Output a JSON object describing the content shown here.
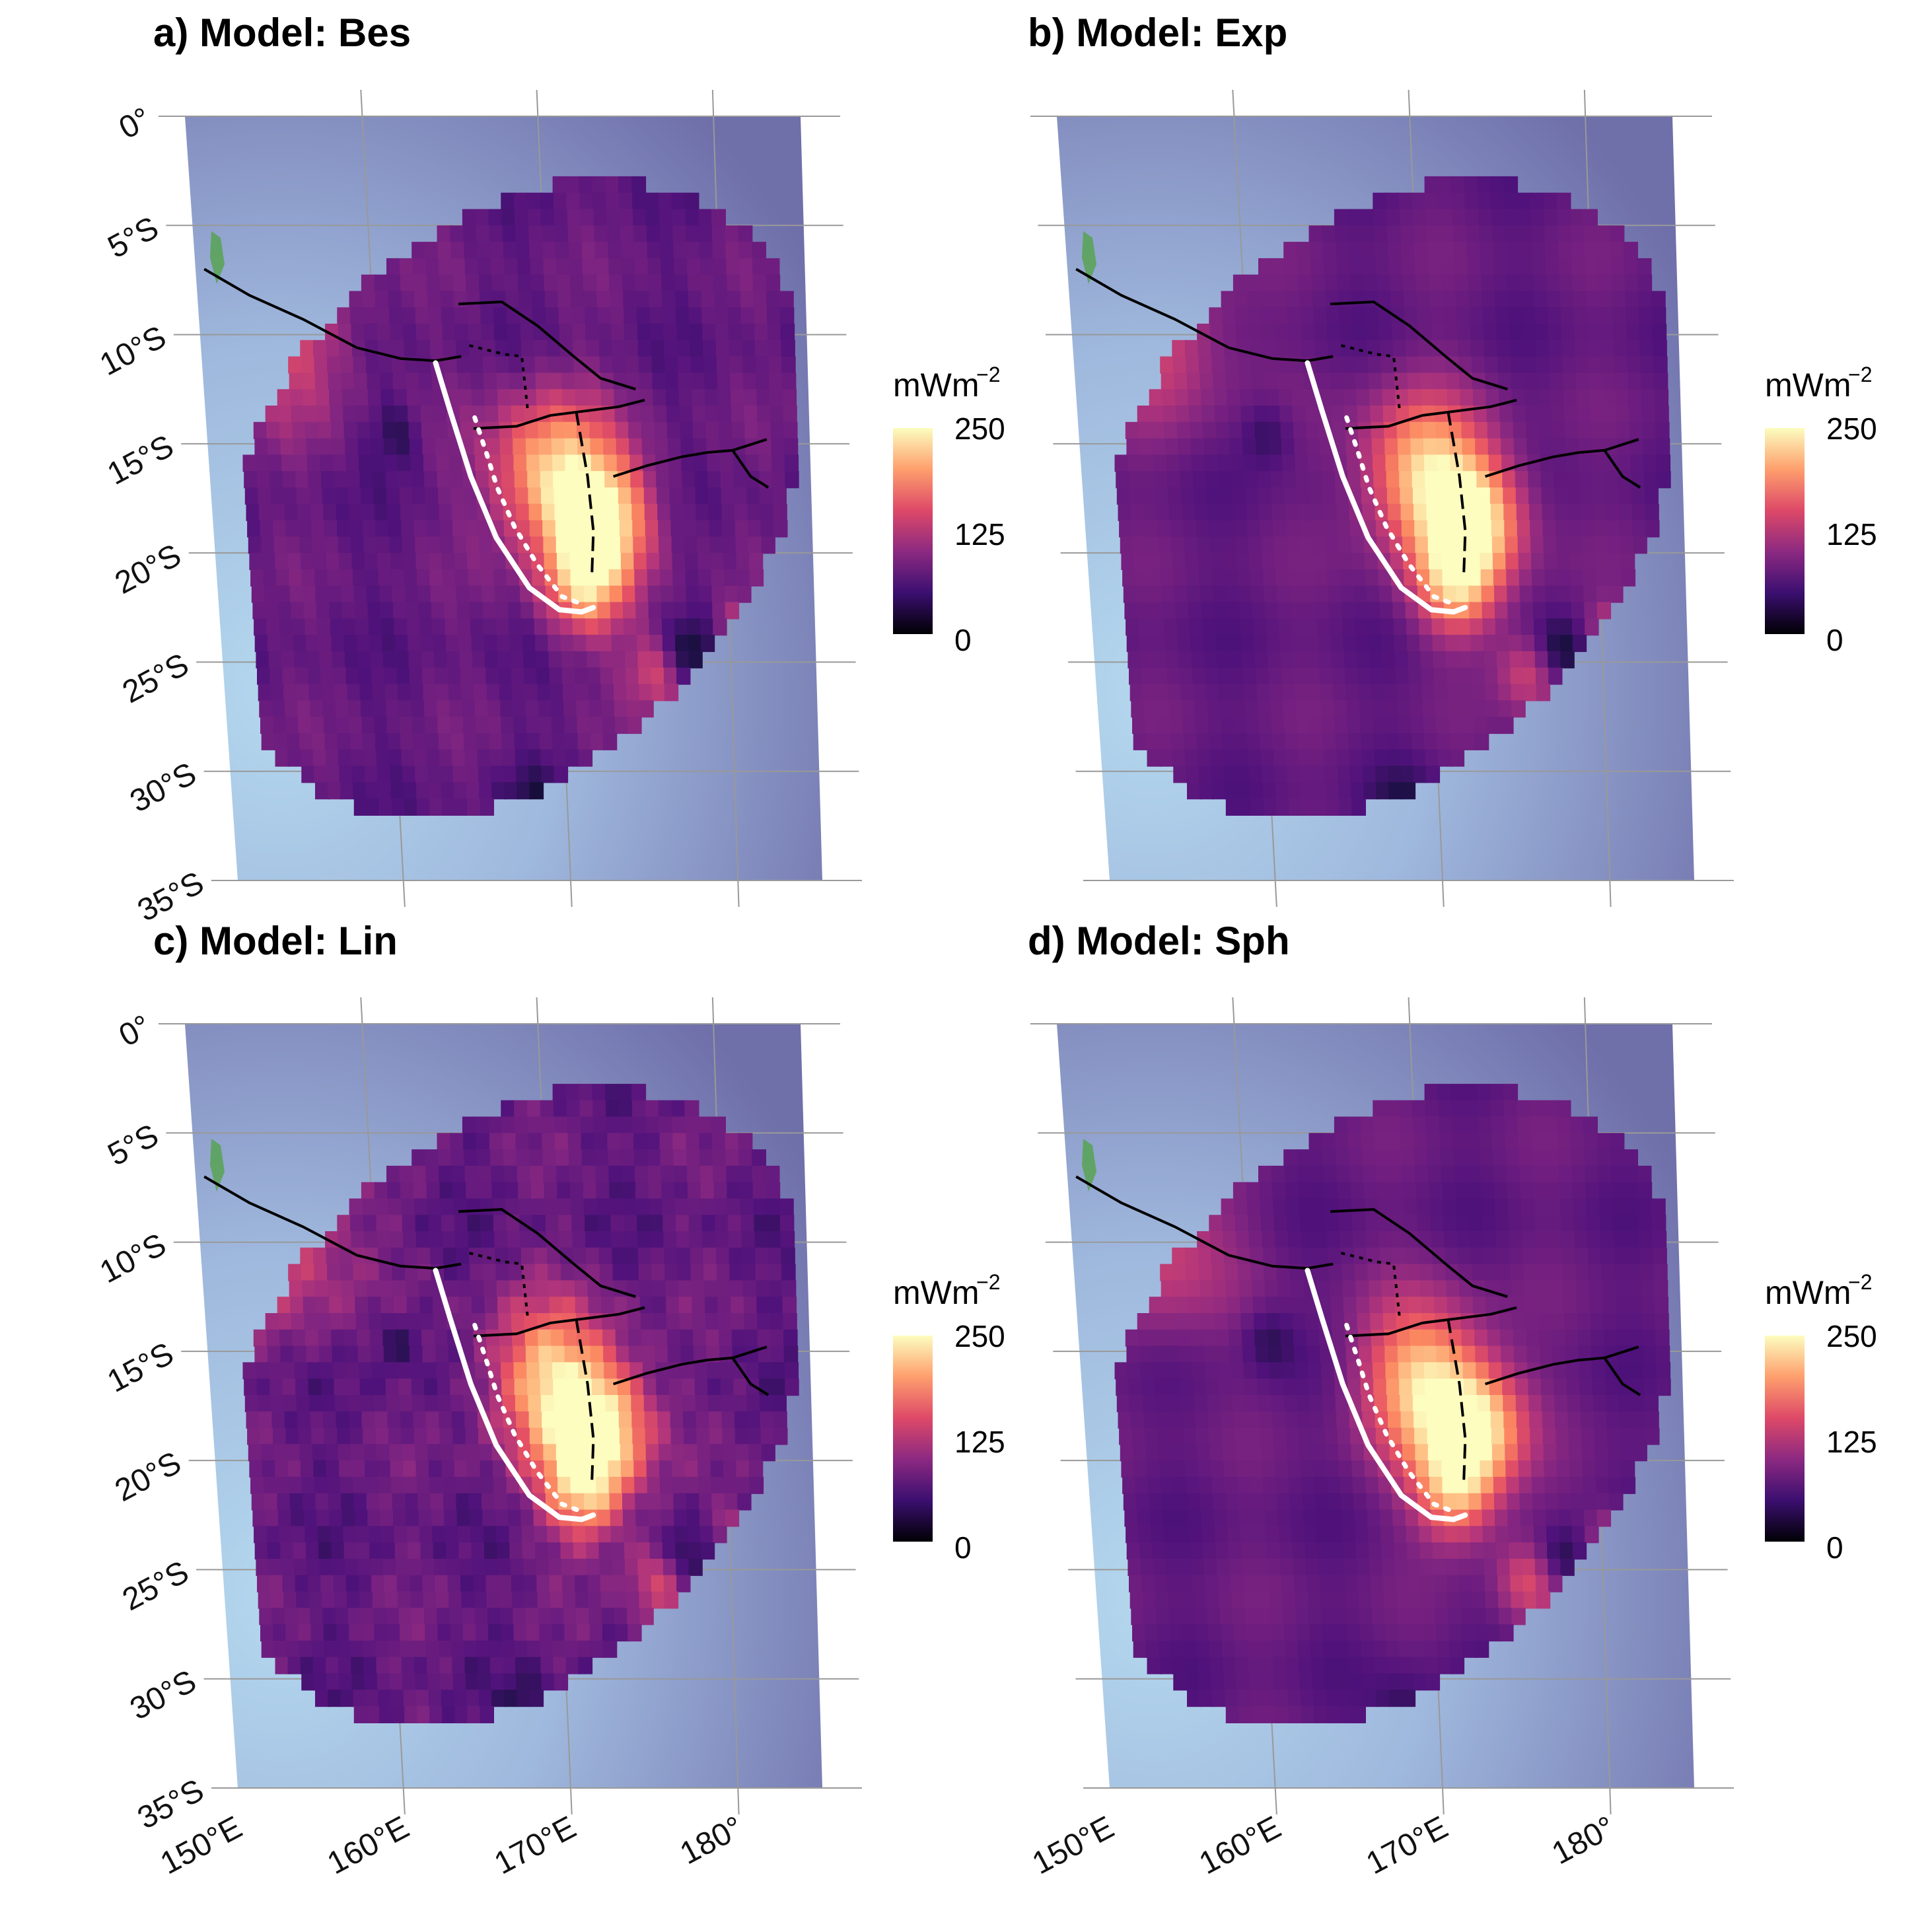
{
  "panels": [
    {
      "title": "a) Model: Bes",
      "variant": 0
    },
    {
      "title": "b) Model: Exp",
      "variant": 1
    },
    {
      "title": "c) Model: Lin",
      "variant": 2
    },
    {
      "title": "d) Model: Sph",
      "variant": 3
    }
  ],
  "map": {
    "lon_range": [
      150,
      185
    ],
    "lat_range": [
      -35,
      0
    ],
    "lon_ticks": [
      "150°E",
      "160°E",
      "170°E",
      "180°"
    ],
    "lat_ticks": [
      "0°",
      "5°S",
      "10°S",
      "15°S",
      "20°S",
      "25°S",
      "30°S",
      "35°S"
    ],
    "ocean_colors": [
      "#b4d8ee",
      "#6f6faa"
    ],
    "land_color": "#5ba35a"
  },
  "legend": {
    "unit": "mWm",
    "unit_exponent": "−2",
    "labels": [
      "250",
      "125",
      "0"
    ],
    "value_max": 250,
    "gradient": [
      "#fcfdbf",
      "#fe9f6d",
      "#de4968",
      "#8c2981",
      "#3b0f70",
      "#000004"
    ]
  }
}
